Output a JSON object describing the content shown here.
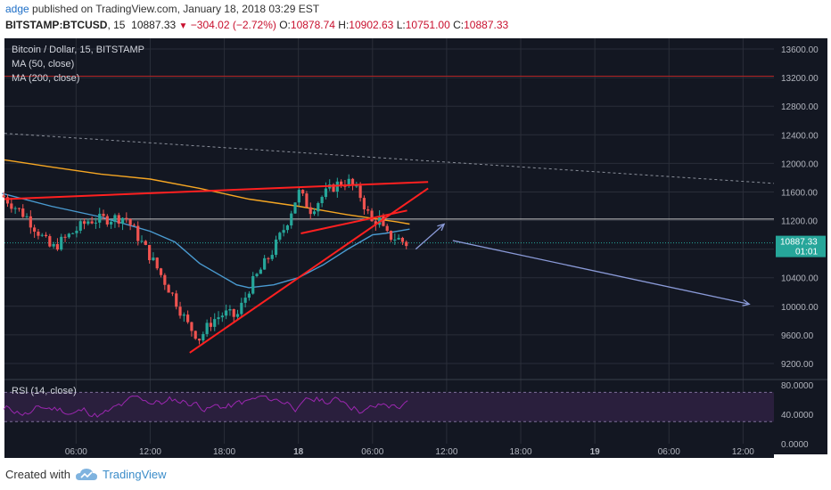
{
  "header": {
    "author": "adge",
    "published_text": "published on TradingView.com, January 18, 2018 03:29 EST",
    "symbol": "BITSTAMP:BTCUSD",
    "interval": "15",
    "last_price": "10887.33",
    "change": "−304.02 (−2.72%)",
    "o_label": "O:",
    "o_value": "10878.74",
    "h_label": "H:",
    "h_value": "10902.63",
    "l_label": "L:",
    "l_value": "10751.00",
    "c_label": "C:",
    "c_value": "10887.33"
  },
  "legend": {
    "title": "Bitcoin / Dollar, 15, BITSTAMP",
    "ma50": "MA (50, close)",
    "ma200": "MA (200, close)",
    "rsi": "RSI (14, close)"
  },
  "price_tag": {
    "value": "10887.33",
    "countdown": "01:01"
  },
  "footer": {
    "created_with": "Created with",
    "brand": "TradingView"
  },
  "colors": {
    "background": "#131722",
    "grid": "#2a2e39",
    "up": "#26a69a",
    "down": "#ef5350",
    "ma50": "#4a9bd1",
    "ma200": "#f5a623",
    "trend": "#ff2020",
    "rsi": "#9c27b0",
    "projection": "#8a9ad8",
    "price_tag": "#26a69a"
  },
  "chart_data": {
    "type": "candlestick",
    "y_range": [
      9000,
      13750
    ],
    "y_ticks": [
      "13600.00",
      "13200.00",
      "12800.00",
      "12400.00",
      "12000.00",
      "11600.00",
      "11200.00",
      "10800.00",
      "10400.00",
      "10000.00",
      "9600.00",
      "9200.00"
    ],
    "y_tick_values": [
      13600,
      13200,
      12800,
      12400,
      12000,
      11600,
      11200,
      10800,
      10400,
      10000,
      9600,
      9200
    ],
    "x_ticks": [
      "06:00",
      "12:00",
      "18:00",
      "18",
      "06:00",
      "12:00",
      "18:00",
      "19",
      "06:00",
      "12:00"
    ],
    "x_tick_hours": [
      6,
      12,
      18,
      24,
      30,
      36,
      42,
      48,
      54,
      60
    ],
    "x_range_hours": [
      0.2,
      62.5
    ],
    "hline_red": 13220,
    "hline_white": 11220,
    "hline_price": 10887.33,
    "anchors_hours": [
      0,
      2,
      4,
      7,
      10,
      12,
      14,
      15,
      16,
      17,
      18,
      19,
      20,
      22,
      23,
      24,
      25,
      26,
      27,
      28,
      29,
      30,
      30.5,
      31,
      32,
      33
    ],
    "anchors_price": [
      11550,
      11250,
      10800,
      11200,
      11250,
      10700,
      10100,
      9750,
      9550,
      9800,
      9900,
      9850,
      10250,
      10800,
      11150,
      11600,
      11350,
      11550,
      11700,
      11750,
      11550,
      11150,
      11250,
      11000,
      10950,
      10850
    ],
    "ma50_hours": [
      0,
      4,
      8,
      12,
      14,
      16,
      18,
      19,
      20,
      22,
      24,
      26,
      28,
      30,
      31,
      32,
      33
    ],
    "ma50_price": [
      11580,
      11400,
      11250,
      11050,
      10900,
      10600,
      10400,
      10300,
      10260,
      10300,
      10400,
      10580,
      10800,
      11000,
      11020,
      11050,
      11080
    ],
    "ma200_hours": [
      0.2,
      4,
      8,
      12,
      16,
      20,
      24,
      28,
      30,
      32,
      33
    ],
    "ma200_price": [
      12050,
      11950,
      11850,
      11780,
      11650,
      11500,
      11400,
      11280,
      11230,
      11180,
      11150
    ],
    "trend_lines": [
      {
        "from": [
          0.2,
          11500
        ],
        "to": [
          34.5,
          11740
        ]
      },
      {
        "from": [
          15.2,
          9350
        ],
        "to": [
          34.5,
          11650
        ]
      },
      {
        "from": [
          24.2,
          11020
        ],
        "to": [
          32.8,
          11340
        ]
      }
    ],
    "dotted_line": {
      "from": [
        0.2,
        12420
      ],
      "to": [
        62.5,
        11720
      ]
    },
    "projections": [
      {
        "from": [
          33.5,
          10800
        ],
        "to": [
          35.8,
          11150
        ]
      },
      {
        "from": [
          36.5,
          10920
        ],
        "to": [
          60.5,
          10030
        ]
      }
    ],
    "rsi_range": [
      0,
      85
    ],
    "rsi_ticks": [
      "80.0000",
      "40.0000",
      "0.0000"
    ],
    "rsi_tick_values": [
      80,
      40,
      0
    ],
    "rsi_band": [
      30,
      70
    ]
  }
}
